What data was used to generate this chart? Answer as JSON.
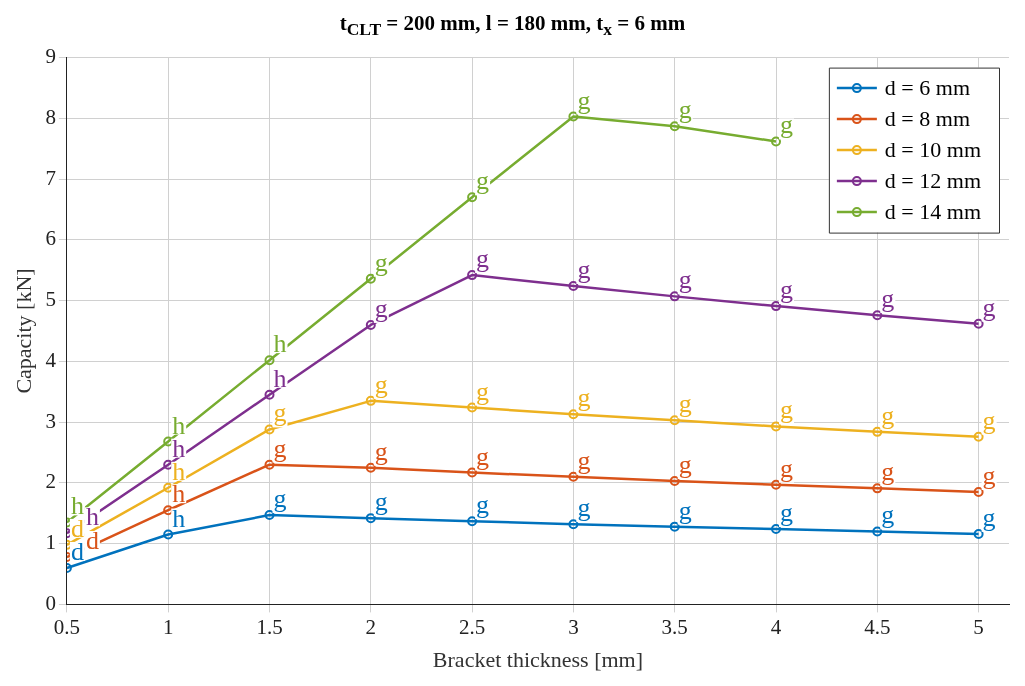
{
  "chart_data": {
    "type": "line",
    "title": "t$_{CLT}$ = 200 mm, l = 180 mm, t$_{x}$ = 6 mm",
    "xlabel": "Bracket thickness [mm]",
    "ylabel": "Capacity [kN]",
    "x": [
      0.5,
      1,
      1.5,
      2,
      2.5,
      3,
      3.5,
      4,
      4.5,
      5
    ],
    "series": [
      {
        "name": "d = 6 mm",
        "color": "#0072bd",
        "values": [
          0.6,
          1.15,
          1.47,
          1.42,
          1.37,
          1.32,
          1.28,
          1.24,
          1.2,
          1.16
        ],
        "value_labels": [
          "d",
          "h",
          "g",
          "g",
          "g",
          "g",
          "g",
          "g",
          "g",
          "g"
        ]
      },
      {
        "name": "d = 8 mm",
        "color": "#d95319",
        "values": [
          0.78,
          1.55,
          2.3,
          2.25,
          2.17,
          2.1,
          2.03,
          1.97,
          1.91,
          1.85
        ],
        "value_labels": [
          "d",
          "h",
          "g",
          "g",
          "g",
          "g",
          "g",
          "g",
          "g",
          "g"
        ]
      },
      {
        "name": "d = 10 mm",
        "color": "#edb120",
        "values": [
          0.98,
          1.92,
          2.88,
          3.35,
          3.24,
          3.13,
          3.03,
          2.93,
          2.84,
          2.76
        ],
        "value_labels": [
          "d",
          "h",
          "g",
          "g",
          "g",
          "g",
          "g",
          "g",
          "g",
          "g"
        ]
      },
      {
        "name": "d = 12 mm",
        "color": "#7e2f8e",
        "values": [
          1.17,
          2.3,
          3.45,
          4.6,
          5.42,
          5.24,
          5.07,
          4.91,
          4.76,
          4.62
        ],
        "value_labels": [
          "h",
          "h",
          "h",
          "g",
          "g",
          "g",
          "g",
          "g",
          "g",
          "g"
        ]
      },
      {
        "name": "d = 14 mm",
        "color": "#77ac30",
        "values": [
          1.35,
          2.68,
          4.02,
          5.36,
          6.7,
          8.03,
          7.87,
          7.62,
          null,
          null
        ],
        "value_labels": [
          "h",
          "h",
          "h",
          "g",
          "g",
          "g",
          "g",
          "g",
          null,
          null
        ]
      }
    ],
    "xlim": [
      0.5,
      5.15
    ],
    "xticks": [
      0.5,
      1,
      1.5,
      2,
      2.5,
      3,
      3.5,
      4,
      4.5,
      5
    ],
    "ylim": [
      0,
      9
    ],
    "yticks": [
      0,
      1,
      2,
      3,
      4,
      5,
      6,
      7,
      8,
      9
    ],
    "grid": true,
    "legend": "top right",
    "marker": "circle",
    "line_style": "solid"
  }
}
